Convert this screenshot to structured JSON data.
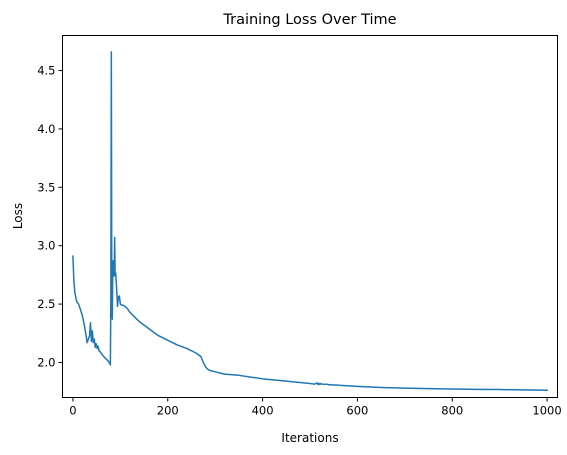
{
  "chart_data": {
    "type": "line",
    "title": "Training Loss Over Time",
    "xlabel": "Iterations",
    "ylabel": "Loss",
    "xlim": [
      -22,
      1022
    ],
    "ylim": [
      1.7,
      4.8
    ],
    "xticks": [
      0,
      200,
      400,
      600,
      800,
      1000
    ],
    "yticks": [
      2.0,
      2.5,
      3.0,
      3.5,
      4.0,
      4.5
    ],
    "ytick_labels": [
      "2.0",
      "2.5",
      "3.0",
      "3.5",
      "4.0",
      "4.5"
    ],
    "grid": false,
    "series": [
      {
        "color": "#1f77b4",
        "x": [
          0,
          2,
          4,
          8,
          12,
          16,
          20,
          25,
          30,
          35,
          37,
          39,
          41,
          43,
          45,
          47,
          49,
          51,
          53,
          55,
          58,
          61,
          65,
          70,
          75,
          79,
          80,
          81,
          82,
          83,
          84,
          85,
          86,
          87,
          88,
          89,
          90,
          92,
          94,
          96,
          98,
          100,
          103,
          106,
          110,
          115,
          120,
          130,
          140,
          150,
          160,
          180,
          200,
          220,
          240,
          260,
          270,
          275,
          280,
          285,
          290,
          300,
          320,
          350,
          400,
          450,
          500,
          510,
          515,
          517,
          519,
          521,
          523,
          525,
          530,
          535,
          540,
          545,
          550,
          555,
          560,
          600,
          650,
          700,
          750,
          800,
          850,
          900,
          950,
          1000
        ],
        "y": [
          2.91,
          2.7,
          2.6,
          2.52,
          2.5,
          2.45,
          2.4,
          2.3,
          2.17,
          2.23,
          2.34,
          2.18,
          2.27,
          2.17,
          2.2,
          2.13,
          2.16,
          2.12,
          2.14,
          2.1,
          2.09,
          2.07,
          2.05,
          2.03,
          2.01,
          1.98,
          2.6,
          4.66,
          2.5,
          2.37,
          2.8,
          2.87,
          2.8,
          2.74,
          3.07,
          2.75,
          2.77,
          2.65,
          2.48,
          2.56,
          2.57,
          2.5,
          2.49,
          2.49,
          2.48,
          2.46,
          2.43,
          2.39,
          2.35,
          2.32,
          2.29,
          2.23,
          2.19,
          2.15,
          2.12,
          2.08,
          2.05,
          2.0,
          1.96,
          1.94,
          1.93,
          1.92,
          1.9,
          1.89,
          1.86,
          1.84,
          1.82,
          1.815,
          1.825,
          1.81,
          1.822,
          1.812,
          1.82,
          1.815,
          1.812,
          1.815,
          1.808,
          1.81,
          1.806,
          1.808,
          1.805,
          1.795,
          1.786,
          1.78,
          1.776,
          1.773,
          1.77,
          1.768,
          1.765,
          1.762
        ]
      }
    ]
  }
}
